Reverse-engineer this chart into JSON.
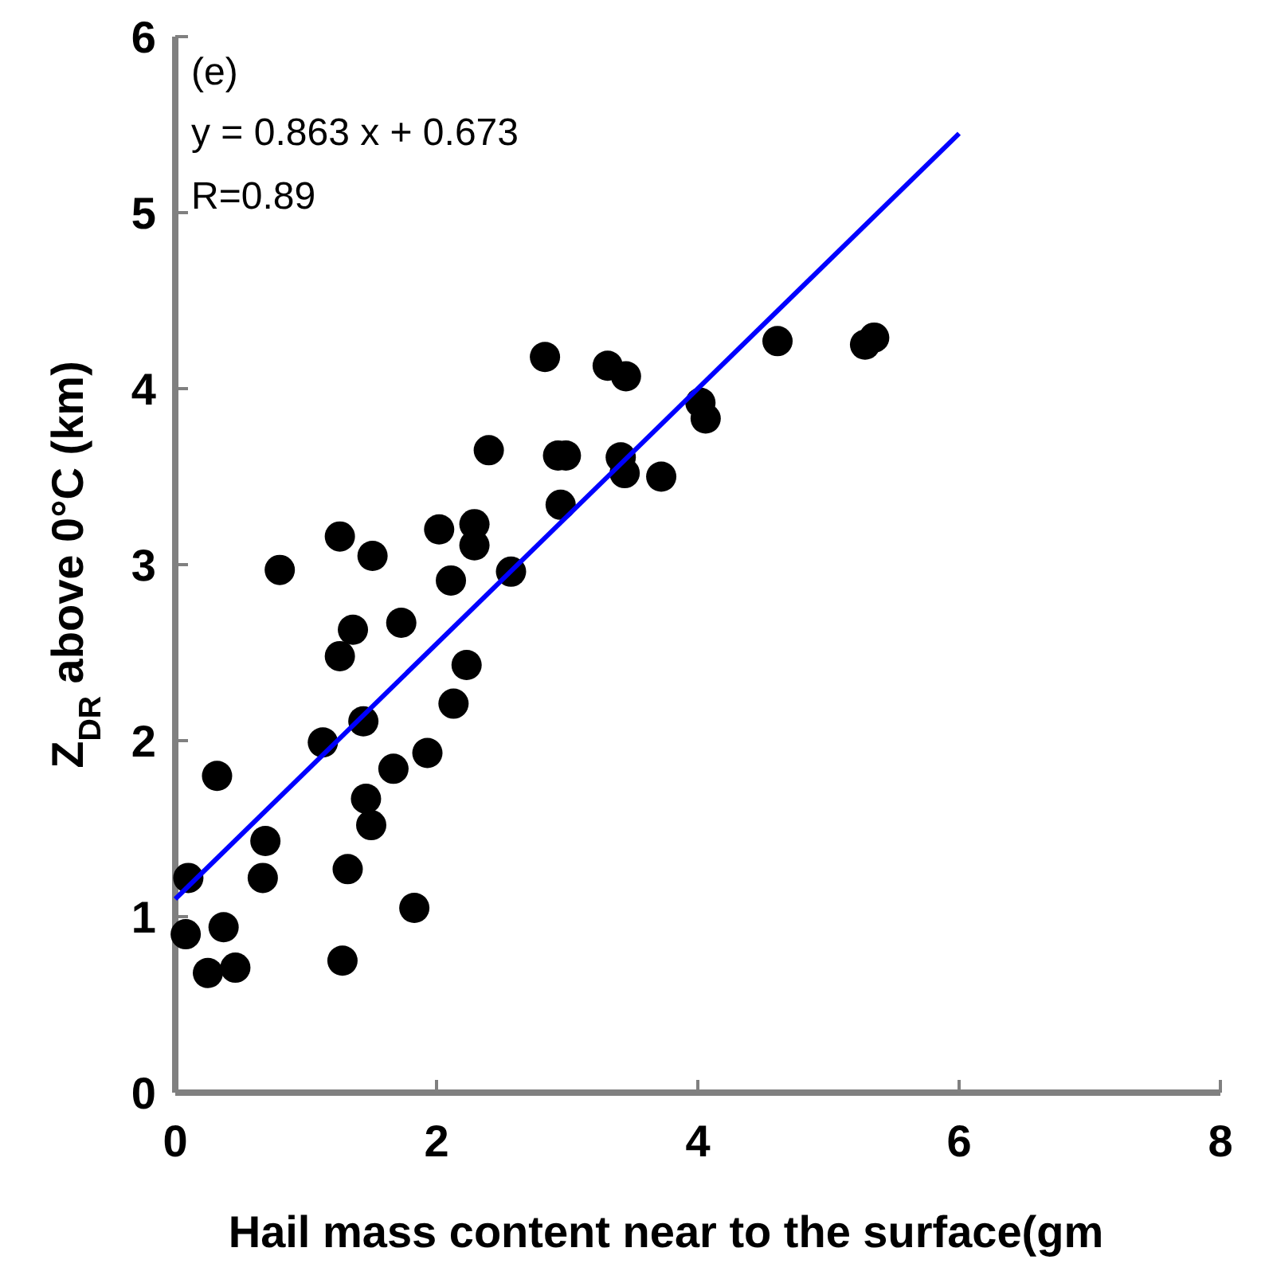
{
  "chart_data": {
    "type": "scatter",
    "xlabel": "Hail mass content near to the surface(gm",
    "ylabel": "Z$_{DR}$ above 0°C (km)",
    "annotations": [
      "(e)",
      "y = 0.863 x + 0.673",
      "R=0.89"
    ],
    "xlim": [
      0,
      8
    ],
    "xticks": [
      0,
      2,
      4,
      6,
      8
    ],
    "ylim": [
      0,
      6
    ],
    "yticks": [
      0,
      1,
      2,
      3,
      4,
      5,
      6
    ],
    "grid": false,
    "series": [
      {
        "color": "#000000",
        "marker": "circle",
        "x": [
          2.83,
          3.31,
          3.45,
          4.02,
          4.06,
          2.4,
          2.93,
          2.99,
          3.41,
          3.44,
          3.72,
          2.95,
          1.26,
          1.51,
          0.8,
          2.02,
          2.29,
          2.29,
          2.11,
          2.57,
          1.36,
          1.26,
          1.73,
          2.23,
          2.13,
          1.44,
          1.13,
          0.32,
          1.67,
          1.93,
          1.46,
          1.5,
          0.69,
          0.67,
          0.1,
          1.32,
          1.83,
          0.08,
          0.37,
          0.25,
          0.46,
          1.28,
          4.61,
          5.28,
          5.35
        ],
        "values": [
          4.18,
          4.13,
          4.07,
          3.92,
          3.83,
          3.65,
          3.62,
          3.62,
          3.61,
          3.52,
          3.5,
          3.34,
          3.16,
          3.05,
          2.97,
          3.2,
          3.23,
          3.11,
          2.91,
          2.96,
          2.63,
          2.48,
          2.67,
          2.43,
          2.21,
          2.11,
          1.99,
          1.8,
          1.84,
          1.93,
          1.67,
          1.52,
          1.43,
          1.22,
          1.22,
          1.27,
          1.05,
          0.9,
          0.94,
          0.68,
          0.71,
          0.75,
          4.27,
          4.25,
          4.29
        ]
      },
      {
        "type": "line",
        "color": "#0000ff",
        "line_style": "solid",
        "x": [
          0,
          6
        ],
        "values": [
          1.1,
          5.45
        ]
      }
    ]
  }
}
